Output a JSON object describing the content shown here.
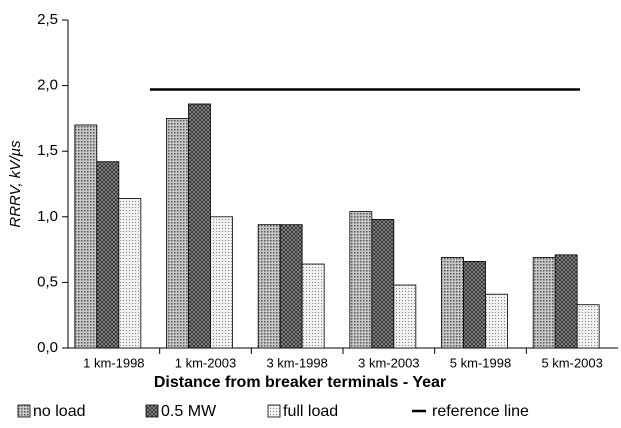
{
  "chart_data": {
    "type": "bar",
    "y_label": "RRRV, kV/µs",
    "x_label": "Distance from breaker terminals - Year",
    "categories": [
      "1 km-1998",
      "1 km-2003",
      "3 km-1998",
      "3 km-2003",
      "5 km-1998",
      "5 km-2003"
    ],
    "series": [
      {
        "name": "no load",
        "color": "#9a9a9a",
        "values": [
          1.7,
          1.75,
          0.94,
          1.04,
          0.69,
          0.69
        ]
      },
      {
        "name": "0.5 MW",
        "color": "#6e6e6e",
        "values": [
          1.42,
          1.86,
          0.94,
          0.98,
          0.66,
          0.71
        ]
      },
      {
        "name": "full load",
        "color": "#d6d6d6",
        "values": [
          1.14,
          1.0,
          0.64,
          0.48,
          0.41,
          0.33
        ]
      }
    ],
    "reference_line": {
      "name": "reference line",
      "value": 1.97
    },
    "ylim": [
      0,
      2.5
    ],
    "yticks": [
      {
        "value": 0,
        "label": "0,0"
      },
      {
        "value": 0.5,
        "label": "0,5"
      },
      {
        "value": 1.0,
        "label": "1,0"
      },
      {
        "value": 1.5,
        "label": "1,5"
      },
      {
        "value": 2.0,
        "label": "2,0"
      },
      {
        "value": 2.5,
        "label": "2,5"
      }
    ]
  }
}
